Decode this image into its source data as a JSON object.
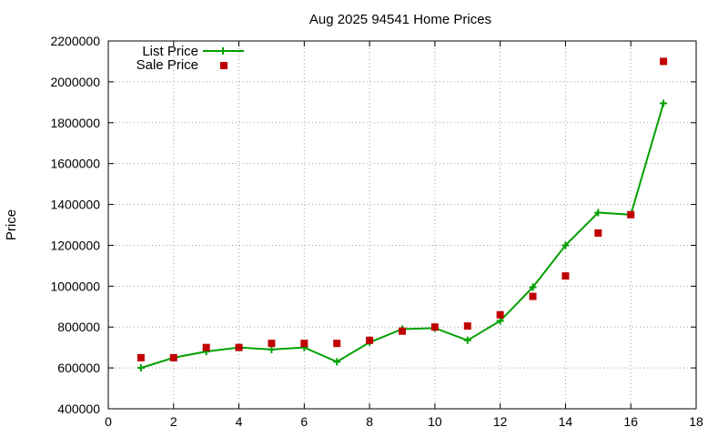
{
  "chart_data": {
    "type": "line",
    "title": "Aug 2025 94541 Home Prices",
    "xlabel": "",
    "ylabel": "Price",
    "xlim": [
      0,
      18
    ],
    "ylim": [
      400000,
      2200000
    ],
    "xticks": [
      0,
      2,
      4,
      6,
      8,
      10,
      12,
      14,
      16,
      18
    ],
    "yticks": [
      400000,
      600000,
      800000,
      1000000,
      1200000,
      1400000,
      1600000,
      1800000,
      2000000,
      2200000
    ],
    "grid": true,
    "legend_position": "top-left",
    "x": [
      1,
      2,
      3,
      4,
      5,
      6,
      7,
      8,
      9,
      10,
      11,
      12,
      13,
      14,
      15,
      16,
      17
    ],
    "series": [
      {
        "name": "List Price",
        "style": "line-points",
        "color": "#00a000",
        "values": [
          600000,
          650000,
          680000,
          700000,
          690000,
          700000,
          630000,
          725000,
          790000,
          795000,
          735000,
          830000,
          995000,
          1200000,
          1360000,
          1350000,
          1895000
        ]
      },
      {
        "name": "Sale Price",
        "style": "points",
        "color": "#c00000",
        "values": [
          650000,
          650000,
          700000,
          700000,
          720000,
          720000,
          720000,
          735000,
          780000,
          800000,
          805000,
          860000,
          950000,
          1050000,
          1260000,
          1350000,
          2100000
        ]
      }
    ]
  }
}
